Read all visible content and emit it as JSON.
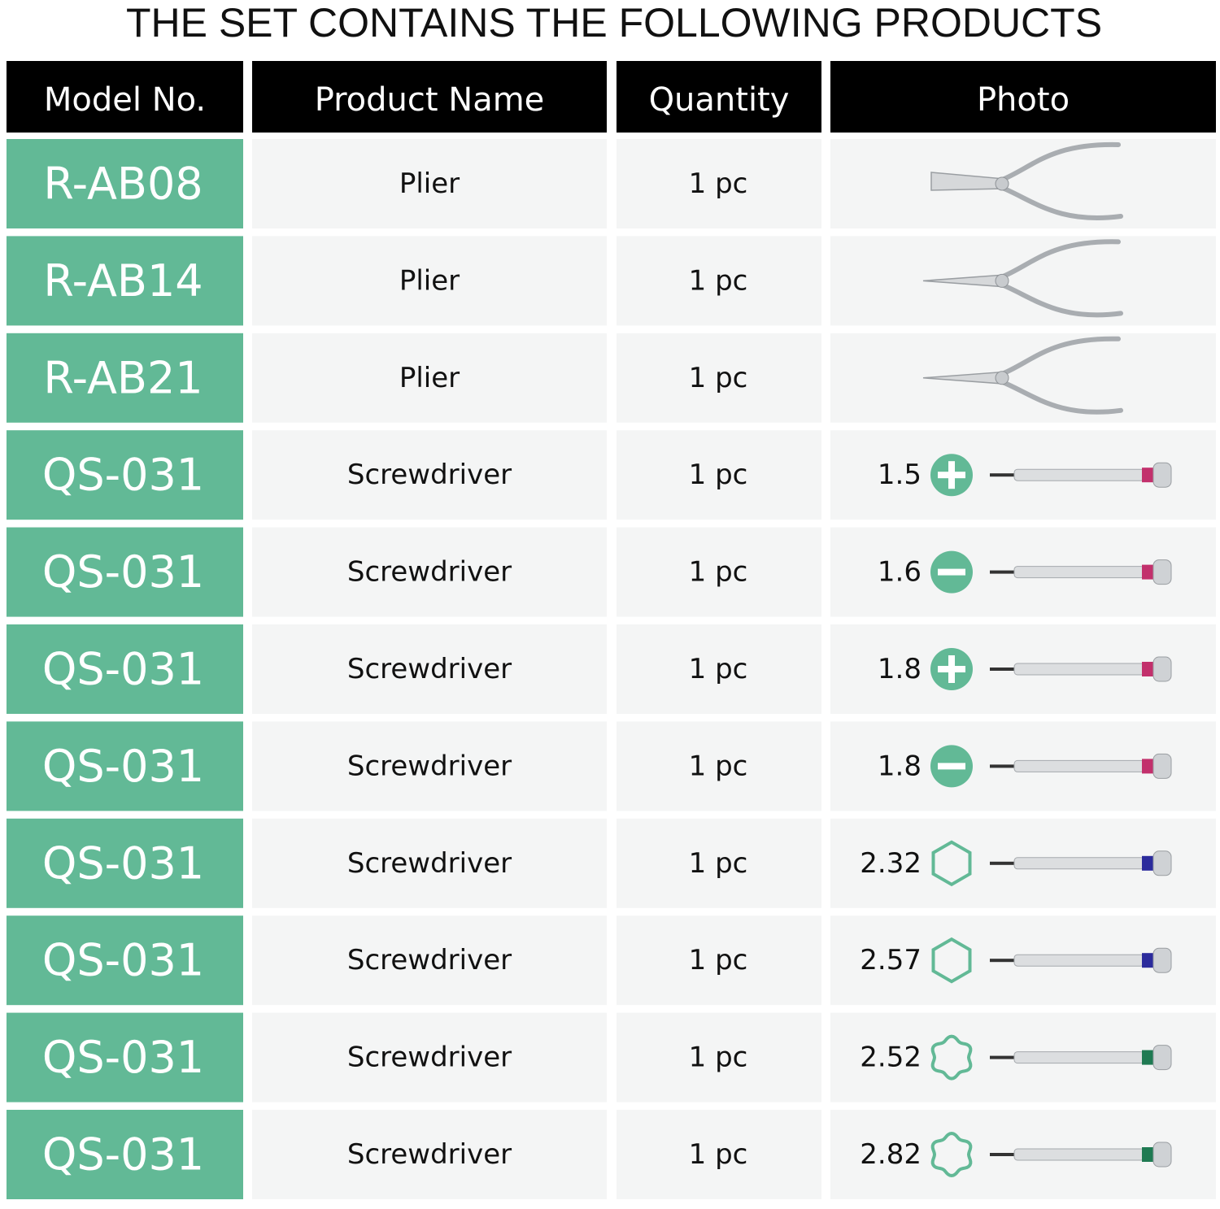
{
  "title": "THE SET CONTAINS THE FOLLOWING PRODUCTS",
  "table": {
    "header": [
      "Model No.",
      "Product Name",
      "Quantity",
      "Photo"
    ],
    "rows": [
      {
        "model": "R-AB08",
        "name": "Plier",
        "quantity": "1 pc"
      },
      {
        "model": "R-AB14",
        "name": "Plier",
        "quantity": "1 pc"
      },
      {
        "model": "R-AB21",
        "name": "Plier",
        "quantity": "1 pc"
      },
      {
        "model": "QS-031",
        "name": "Screwdriver",
        "quantity": "1 pc",
        "size": "1.5"
      },
      {
        "model": "QS-031",
        "name": "Screwdriver",
        "quantity": "1 pc",
        "size": "1.6"
      },
      {
        "model": "QS-031",
        "name": "Screwdriver",
        "quantity": "1 pc",
        "size": "1.8"
      },
      {
        "model": "QS-031",
        "name": "Screwdriver",
        "quantity": "1 pc",
        "size": "1.8"
      },
      {
        "model": "QS-031",
        "name": "Screwdriver",
        "quantity": "1 pc",
        "size": "2.32"
      },
      {
        "model": "QS-031",
        "name": "Screwdriver",
        "quantity": "1 pc",
        "size": "2.57"
      },
      {
        "model": "QS-031",
        "name": "Screwdriver",
        "quantity": "1 pc",
        "size": "2.52"
      },
      {
        "model": "QS-031",
        "name": "Screwdriver",
        "quantity": "1 pc",
        "size": "2.82"
      }
    ]
  }
}
